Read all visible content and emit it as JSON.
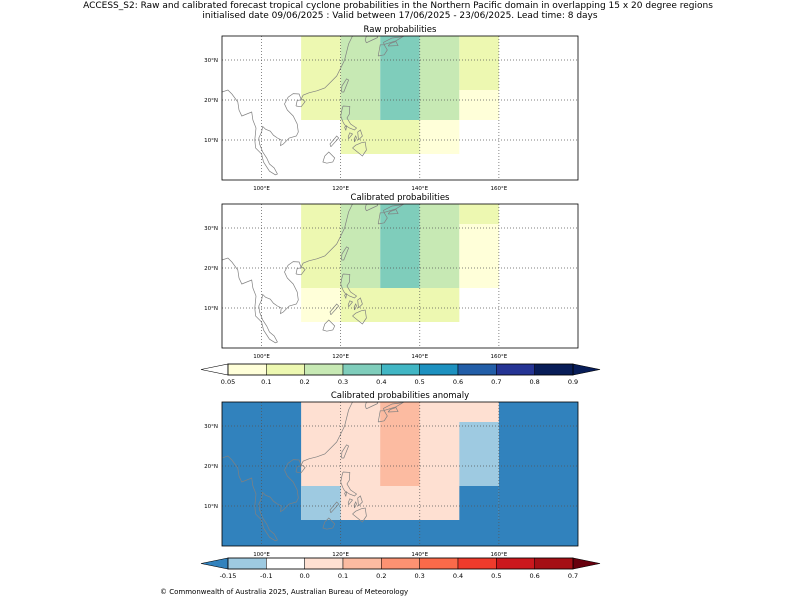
{
  "title_line1": "ACCESS_S2: Raw and calibrated forecast tropical cyclone probabilities in the Northern Pacific domain in overlapping 15 x 20 degree regions",
  "title_line2": "initialised date 09/06/2025 :  Valid between 17/06/2025 - 23/06/2025. Lead time: 8 days",
  "copyright": "© Commonwealth of Australia 2025, Australian Bureau of Meteorology",
  "colors": {
    "prob_bins": [
      "#ffffd9",
      "#edf8b1",
      "#c7e9b4",
      "#7fcdbb",
      "#41b6c4",
      "#1d91c0",
      "#225ea8",
      "#253494",
      "#081d58"
    ],
    "prob_under": "#ffffff",
    "prob_over": "#081d58",
    "anom_bins": [
      "#3182bd",
      "#9ecae1",
      "#ffffff",
      "#fee0d2",
      "#fcbba1",
      "#fc9272",
      "#fb6a4a",
      "#ef3b2c",
      "#cb181d",
      "#a50f15"
    ],
    "anom_over": "#67000d",
    "coast": "#808080",
    "grid": "#555555"
  },
  "chart_data": [
    {
      "type": "heatmap",
      "title": "Raw probabilities",
      "x_label_ticks": [
        100,
        120,
        140,
        160
      ],
      "x_tick_labels": [
        "100°E",
        "120°E",
        "140°E",
        "160°E"
      ],
      "y_label_ticks": [
        10,
        20,
        30
      ],
      "y_tick_labels": [
        "10°N",
        "20°N",
        "30°N"
      ],
      "lon_range": [
        90,
        180
      ],
      "lat_range": [
        0,
        36
      ],
      "grid": true,
      "cells": [
        {
          "lon": [
            110,
            120
          ],
          "lat": [
            15,
            36
          ],
          "value": 0.15
        },
        {
          "lon": [
            120,
            130
          ],
          "lat": [
            15,
            36
          ],
          "value": 0.25
        },
        {
          "lon": [
            130,
            140
          ],
          "lat": [
            15,
            36
          ],
          "value": 0.35
        },
        {
          "lon": [
            140,
            150
          ],
          "lat": [
            15,
            36
          ],
          "value": 0.25
        },
        {
          "lon": [
            150,
            160
          ],
          "lat": [
            22.5,
            36
          ],
          "value": 0.15
        },
        {
          "lon": [
            150,
            160
          ],
          "lat": [
            15,
            22.5
          ],
          "value": 0.07
        },
        {
          "lon": [
            120,
            140
          ],
          "lat": [
            6.5,
            15
          ],
          "value": 0.15
        },
        {
          "lon": [
            140,
            150
          ],
          "lat": [
            6.5,
            15
          ],
          "value": 0.07
        }
      ]
    },
    {
      "type": "heatmap",
      "title": "Calibrated probabilities",
      "x_label_ticks": [
        100,
        120,
        140,
        160
      ],
      "x_tick_labels": [
        "100°E",
        "120°E",
        "140°E",
        "160°E"
      ],
      "y_label_ticks": [
        10,
        20,
        30
      ],
      "y_tick_labels": [
        "10°N",
        "20°N",
        "30°N"
      ],
      "lon_range": [
        90,
        180
      ],
      "lat_range": [
        0,
        36
      ],
      "grid": true,
      "cells": [
        {
          "lon": [
            110,
            120
          ],
          "lat": [
            15,
            36
          ],
          "value": 0.15
        },
        {
          "lon": [
            120,
            130
          ],
          "lat": [
            15,
            36
          ],
          "value": 0.25
        },
        {
          "lon": [
            130,
            140
          ],
          "lat": [
            15,
            36
          ],
          "value": 0.35
        },
        {
          "lon": [
            140,
            150
          ],
          "lat": [
            15,
            36
          ],
          "value": 0.25
        },
        {
          "lon": [
            150,
            160
          ],
          "lat": [
            31,
            36
          ],
          "value": 0.15
        },
        {
          "lon": [
            150,
            160
          ],
          "lat": [
            15,
            31
          ],
          "value": 0.07
        },
        {
          "lon": [
            110,
            120
          ],
          "lat": [
            6.5,
            15
          ],
          "value": 0.07
        },
        {
          "lon": [
            120,
            150
          ],
          "lat": [
            6.5,
            15
          ],
          "value": 0.15
        }
      ]
    },
    {
      "type": "heatmap",
      "title": "Calibrated probabilities anomaly",
      "x_label_ticks": [
        100,
        120,
        140,
        160
      ],
      "x_tick_labels": [
        "100°E",
        "120°E",
        "140°E",
        "160°E"
      ],
      "y_label_ticks": [
        10,
        20,
        30
      ],
      "y_tick_labels": [
        "10°N",
        "20°N",
        "30°N"
      ],
      "lon_range": [
        90,
        180
      ],
      "lat_range": [
        0,
        36
      ],
      "grid": true,
      "background_value": -0.2,
      "cells": [
        {
          "lon": [
            110,
            160
          ],
          "lat": [
            6.5,
            36
          ],
          "value": 0.0
        },
        {
          "lon": [
            120,
            130
          ],
          "lat": [
            15,
            36
          ],
          "value": 0.05
        },
        {
          "lon": [
            130,
            140
          ],
          "lat": [
            15,
            36
          ],
          "value": 0.15
        },
        {
          "lon": [
            140,
            150
          ],
          "lat": [
            15,
            36
          ],
          "value": 0.05
        },
        {
          "lon": [
            150,
            160
          ],
          "lat": [
            15,
            31
          ],
          "value": -0.12
        },
        {
          "lon": [
            110,
            120
          ],
          "lat": [
            6.5,
            15
          ],
          "value": -0.12
        },
        {
          "lon": [
            150,
            160
          ],
          "lat": [
            6.5,
            15
          ],
          "value": -0.2
        }
      ]
    }
  ],
  "colorbars": [
    {
      "name": "prob",
      "ticks": [
        "0.05",
        "0.1",
        "0.2",
        "0.3",
        "0.4",
        "0.5",
        "0.6",
        "0.7",
        "0.8",
        "0.9"
      ],
      "bounds": [
        0.05,
        0.1,
        0.2,
        0.3,
        0.4,
        0.5,
        0.6,
        0.7,
        0.8,
        0.9
      ]
    },
    {
      "name": "anom",
      "ticks": [
        "-0.15",
        "-0.1",
        "0.0",
        "0.1",
        "0.2",
        "0.3",
        "0.4",
        "0.5",
        "0.6",
        "0.7"
      ],
      "bounds": [
        -0.15,
        -0.1,
        0.0,
        0.1,
        0.2,
        0.3,
        0.4,
        0.5,
        0.6,
        0.7
      ]
    }
  ]
}
